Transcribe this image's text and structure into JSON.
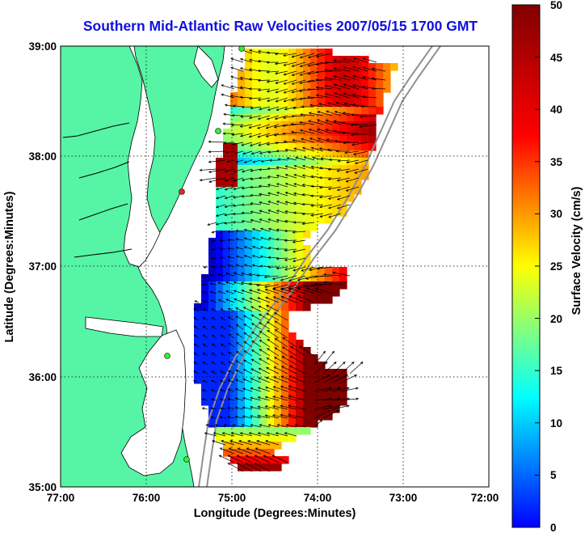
{
  "title": "Southern Mid-Atlantic Raw Velocities 2007/05/15 1700 GMT",
  "map": {
    "xlabel": "Longitude (Degrees:Minutes)",
    "ylabel": "Latitude (Degrees:Minutes)",
    "x_ticks": [
      "77:00",
      "76:00",
      "75:00",
      "74:00",
      "73:00",
      "72:00"
    ],
    "y_ticks": [
      "39:00",
      "38:00",
      "37:00",
      "36:00",
      "35:00"
    ],
    "x_range": [
      -77,
      -72
    ],
    "y_range": [
      35,
      39
    ],
    "grid": "dotted",
    "colors": {
      "land": "#55f5a5",
      "ocean": "#ffffff"
    }
  },
  "colorbar": {
    "label": "Surface Velocity (cm/s)",
    "ticks": [
      "0",
      "5",
      "10",
      "15",
      "20",
      "25",
      "30",
      "35",
      "40",
      "45",
      "50"
    ],
    "range": [
      0,
      50
    ],
    "colormap": "jet"
  }
}
